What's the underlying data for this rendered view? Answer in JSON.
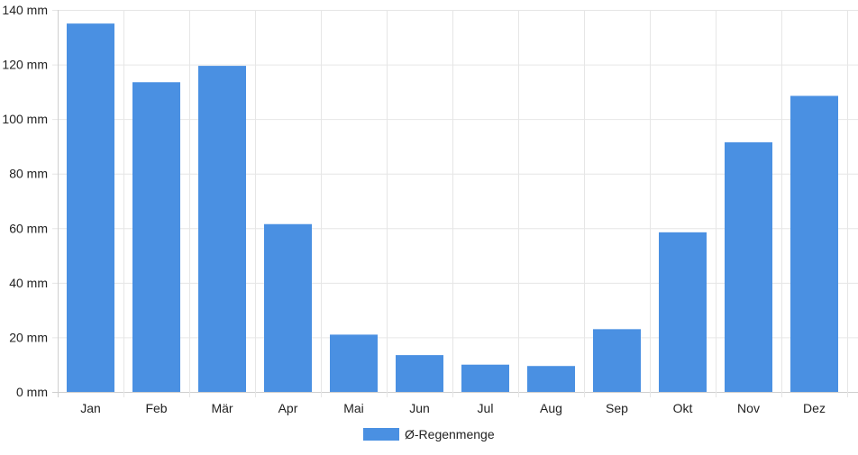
{
  "chart_data": {
    "type": "bar",
    "categories": [
      "Jan",
      "Feb",
      "Mär",
      "Apr",
      "Mai",
      "Jun",
      "Jul",
      "Aug",
      "Sep",
      "Okt",
      "Nov",
      "Dez"
    ],
    "series": [
      {
        "name": "Ø-Regenmenge",
        "values": [
          135,
          113.5,
          119.5,
          61.5,
          21,
          13.5,
          10,
          9.5,
          23,
          58.5,
          91.5,
          108.5
        ],
        "color": "#4a90e2"
      }
    ],
    "ylim": [
      0,
      140
    ],
    "yticks": [
      0,
      20,
      40,
      60,
      80,
      100,
      120,
      140
    ],
    "ytick_labels": [
      "0 mm",
      "20 mm",
      "40 mm",
      "60 mm",
      "80 mm",
      "100 mm",
      "120 mm",
      "140 mm"
    ],
    "grid": true,
    "legend_position": "bottom"
  }
}
